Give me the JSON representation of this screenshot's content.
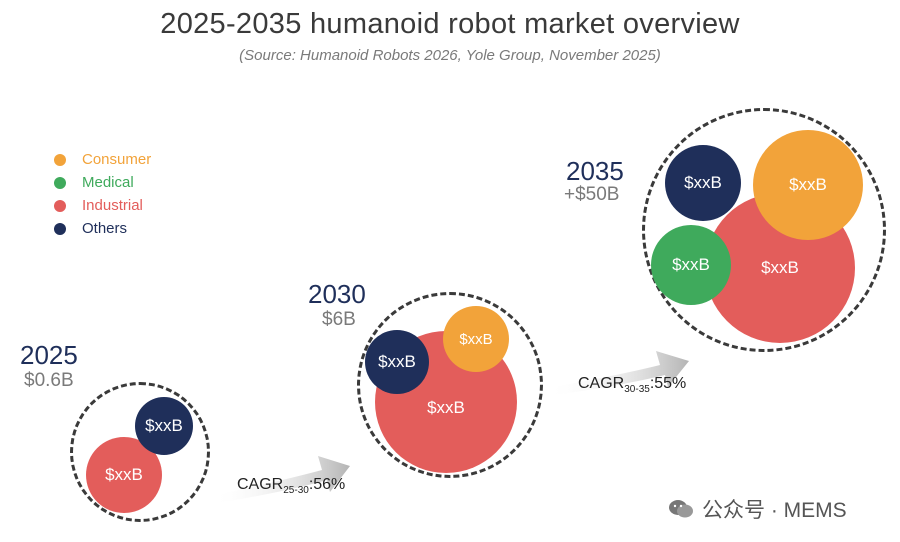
{
  "header": {
    "title": "2025-2035 humanoid robot market overview",
    "subtitle": "(Source: Humanoid Robots 2026, Yole Group, November 2025)"
  },
  "legend": [
    {
      "label": "Consumer",
      "color": "#f2a33a"
    },
    {
      "label": "Medical",
      "color": "#3faa5c"
    },
    {
      "label": "Industrial",
      "color": "#e35d5b"
    },
    {
      "label": "Others",
      "color": "#1f2f5a"
    }
  ],
  "years": [
    {
      "year": "2025",
      "total": "$0.6B",
      "bubbles": [
        {
          "segment": "Industrial",
          "label": "$xxB"
        },
        {
          "segment": "Others",
          "label": "$xxB"
        }
      ]
    },
    {
      "year": "2030",
      "total": "$6B",
      "bubbles": [
        {
          "segment": "Industrial",
          "label": "$xxB"
        },
        {
          "segment": "Others",
          "label": "$xxB"
        },
        {
          "segment": "Consumer",
          "label": "$xxB"
        }
      ]
    },
    {
      "year": "2035",
      "total": "+$50B",
      "bubbles": [
        {
          "segment": "Industrial",
          "label": "$xxB"
        },
        {
          "segment": "Others",
          "label": "$xxB"
        },
        {
          "segment": "Consumer",
          "label": "$xxB"
        },
        {
          "segment": "Medical",
          "label": "$xxB"
        }
      ]
    }
  ],
  "cagr": [
    {
      "prefix": "CAGR",
      "period": "25-30",
      "value": ":56%"
    },
    {
      "prefix": "CAGR",
      "period": "30-35",
      "value": ":55%"
    }
  ],
  "watermark": {
    "text": "公众号 · MEMS",
    "icon": "wechat-icon"
  }
}
